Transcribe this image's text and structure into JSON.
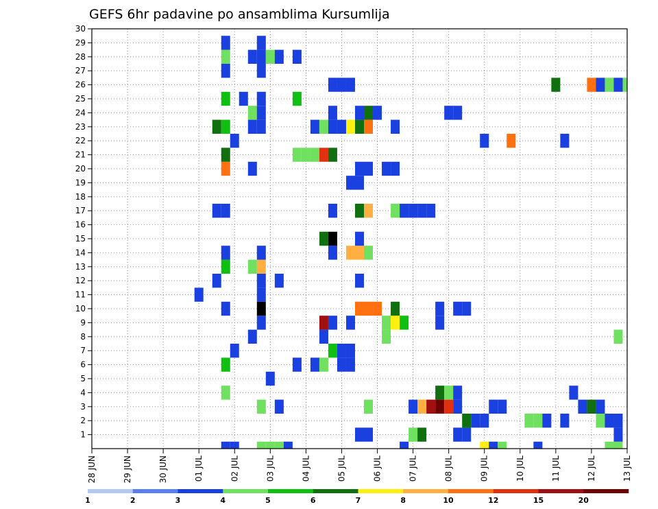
{
  "chart_data": {
    "type": "heatmap",
    "title": "GEFS 6hr padavine po ansamblima Kursumlija",
    "xlabel": "",
    "ylabel": "",
    "x_ticks": [
      "28 JUN",
      "29 JUN",
      "30 JUN",
      "01 JUL",
      "02 JUL",
      "03 JUL",
      "04 JUL",
      "05 JUL",
      "06 JUL",
      "07 JUL",
      "08 JUL",
      "09 JUL",
      "10 JUL",
      "11 JUL",
      "12 JUL",
      "13 JUL"
    ],
    "x_range": [
      0,
      60
    ],
    "x_step": "6 hr",
    "y_ticks": [
      1,
      2,
      3,
      4,
      5,
      6,
      7,
      8,
      9,
      10,
      11,
      12,
      13,
      14,
      15,
      16,
      17,
      18,
      19,
      20,
      21,
      22,
      23,
      24,
      25,
      26,
      27,
      28,
      29,
      30
    ],
    "y_range": [
      0,
      30
    ],
    "grid": true,
    "legend": {
      "placement": "bottom",
      "labels": [
        "1",
        "2",
        "3",
        "4",
        "5",
        "6",
        "7",
        "8",
        "10",
        "12",
        "15",
        "20"
      ],
      "colors": [
        "#b4c8f8",
        "#5a80f0",
        "#1a40e0",
        "#70e060",
        "#10c010",
        "#107010",
        "#fff010",
        "#ffb040",
        "#ff7010",
        "#e03010",
        "#a01010",
        "#700000"
      ]
    },
    "cells": [
      [
        15,
        0,
        2
      ],
      [
        16,
        0,
        2
      ],
      [
        19,
        0,
        3
      ],
      [
        20,
        0,
        3
      ],
      [
        21,
        0,
        3
      ],
      [
        22,
        0,
        2
      ],
      [
        35,
        0,
        2
      ],
      [
        44,
        0,
        6
      ],
      [
        45,
        0,
        2
      ],
      [
        46,
        0,
        3
      ],
      [
        50,
        0,
        2
      ],
      [
        58,
        0,
        3
      ],
      [
        59,
        0,
        3
      ],
      [
        30,
        1,
        2
      ],
      [
        31,
        1,
        2
      ],
      [
        36,
        1,
        3
      ],
      [
        37,
        1,
        5
      ],
      [
        41,
        1,
        2
      ],
      [
        42,
        1,
        2
      ],
      [
        59,
        1,
        2
      ],
      [
        42,
        2,
        5
      ],
      [
        43,
        2,
        2
      ],
      [
        44,
        2,
        2
      ],
      [
        49,
        2,
        3
      ],
      [
        50,
        2,
        3
      ],
      [
        51,
        2,
        2
      ],
      [
        53,
        2,
        2
      ],
      [
        57,
        2,
        3
      ],
      [
        58,
        2,
        2
      ],
      [
        59,
        2,
        2
      ],
      [
        19,
        3,
        3
      ],
      [
        21,
        3,
        2
      ],
      [
        31,
        3,
        3
      ],
      [
        36,
        3,
        2
      ],
      [
        37,
        3,
        7
      ],
      [
        38,
        3,
        10
      ],
      [
        39,
        3,
        11
      ],
      [
        40,
        3,
        9
      ],
      [
        41,
        3,
        2
      ],
      [
        45,
        3,
        2
      ],
      [
        46,
        3,
        2
      ],
      [
        55,
        3,
        2
      ],
      [
        56,
        3,
        5
      ],
      [
        57,
        3,
        2
      ],
      [
        15,
        4,
        3
      ],
      [
        39,
        4,
        5
      ],
      [
        40,
        4,
        3
      ],
      [
        41,
        4,
        2
      ],
      [
        54,
        4,
        2
      ],
      [
        20,
        5,
        2
      ],
      [
        15,
        6,
        4
      ],
      [
        23,
        6,
        2
      ],
      [
        25,
        6,
        2
      ],
      [
        26,
        6,
        3
      ],
      [
        28,
        6,
        2
      ],
      [
        29,
        6,
        2
      ],
      [
        16,
        7,
        2
      ],
      [
        27,
        7,
        4
      ],
      [
        28,
        7,
        2
      ],
      [
        29,
        7,
        2
      ],
      [
        18,
        8,
        2
      ],
      [
        26,
        8,
        2
      ],
      [
        33,
        8,
        3
      ],
      [
        59,
        8,
        3
      ],
      [
        19,
        9,
        2
      ],
      [
        26,
        9,
        10
      ],
      [
        27,
        9,
        2
      ],
      [
        29,
        9,
        2
      ],
      [
        33,
        9,
        3
      ],
      [
        34,
        9,
        6
      ],
      [
        35,
        9,
        4
      ],
      [
        39,
        9,
        2
      ],
      [
        15,
        10,
        2
      ],
      [
        19,
        10,
        12
      ],
      [
        30,
        10,
        8
      ],
      [
        31,
        10,
        8
      ],
      [
        32,
        10,
        8
      ],
      [
        34,
        10,
        5
      ],
      [
        39,
        10,
        2
      ],
      [
        41,
        10,
        2
      ],
      [
        42,
        10,
        2
      ],
      [
        12,
        11,
        2
      ],
      [
        19,
        11,
        2
      ],
      [
        14,
        12,
        2
      ],
      [
        19,
        12,
        2
      ],
      [
        21,
        12,
        2
      ],
      [
        30,
        12,
        2
      ],
      [
        15,
        13,
        4
      ],
      [
        18,
        13,
        3
      ],
      [
        19,
        13,
        7
      ],
      [
        15,
        14,
        2
      ],
      [
        19,
        14,
        2
      ],
      [
        27,
        14,
        2
      ],
      [
        29,
        14,
        7
      ],
      [
        30,
        14,
        7
      ],
      [
        31,
        14,
        3
      ],
      [
        26,
        15,
        5
      ],
      [
        27,
        15,
        12
      ],
      [
        30,
        15,
        2
      ],
      [
        14,
        17,
        2
      ],
      [
        15,
        17,
        2
      ],
      [
        27,
        17,
        2
      ],
      [
        30,
        17,
        5
      ],
      [
        31,
        17,
        7
      ],
      [
        34,
        17,
        3
      ],
      [
        35,
        17,
        2
      ],
      [
        36,
        17,
        2
      ],
      [
        37,
        17,
        2
      ],
      [
        38,
        17,
        2
      ],
      [
        29,
        19,
        2
      ],
      [
        30,
        19,
        2
      ],
      [
        15,
        20,
        8
      ],
      [
        18,
        20,
        2
      ],
      [
        30,
        20,
        2
      ],
      [
        31,
        20,
        2
      ],
      [
        33,
        20,
        2
      ],
      [
        34,
        20,
        2
      ],
      [
        15,
        21,
        5
      ],
      [
        23,
        21,
        3
      ],
      [
        24,
        21,
        3
      ],
      [
        25,
        21,
        3
      ],
      [
        26,
        21,
        9
      ],
      [
        27,
        21,
        5
      ],
      [
        16,
        22,
        2
      ],
      [
        44,
        22,
        2
      ],
      [
        47,
        22,
        8
      ],
      [
        53,
        22,
        2
      ],
      [
        14,
        23,
        5
      ],
      [
        15,
        23,
        4
      ],
      [
        18,
        23,
        2
      ],
      [
        19,
        23,
        2
      ],
      [
        25,
        23,
        2
      ],
      [
        26,
        23,
        3
      ],
      [
        27,
        23,
        2
      ],
      [
        28,
        23,
        2
      ],
      [
        29,
        23,
        6
      ],
      [
        30,
        23,
        5
      ],
      [
        31,
        23,
        8
      ],
      [
        34,
        23,
        2
      ],
      [
        18,
        24,
        3
      ],
      [
        19,
        24,
        2
      ],
      [
        27,
        24,
        2
      ],
      [
        30,
        24,
        2
      ],
      [
        31,
        24,
        5
      ],
      [
        32,
        24,
        2
      ],
      [
        40,
        24,
        2
      ],
      [
        41,
        24,
        2
      ],
      [
        15,
        25,
        4
      ],
      [
        17,
        25,
        2
      ],
      [
        19,
        25,
        2
      ],
      [
        23,
        25,
        4
      ],
      [
        27,
        26,
        2
      ],
      [
        28,
        26,
        2
      ],
      [
        29,
        26,
        2
      ],
      [
        52,
        26,
        5
      ],
      [
        56,
        26,
        8
      ],
      [
        57,
        26,
        2
      ],
      [
        58,
        26,
        3
      ],
      [
        59,
        26,
        2
      ],
      [
        60,
        26,
        3
      ],
      [
        15,
        27,
        2
      ],
      [
        19,
        27,
        2
      ],
      [
        15,
        28,
        3
      ],
      [
        18,
        28,
        2
      ],
      [
        19,
        28,
        2
      ],
      [
        20,
        28,
        3
      ],
      [
        21,
        28,
        2
      ],
      [
        23,
        28,
        2
      ],
      [
        15,
        29,
        2
      ],
      [
        19,
        29,
        2
      ]
    ]
  }
}
